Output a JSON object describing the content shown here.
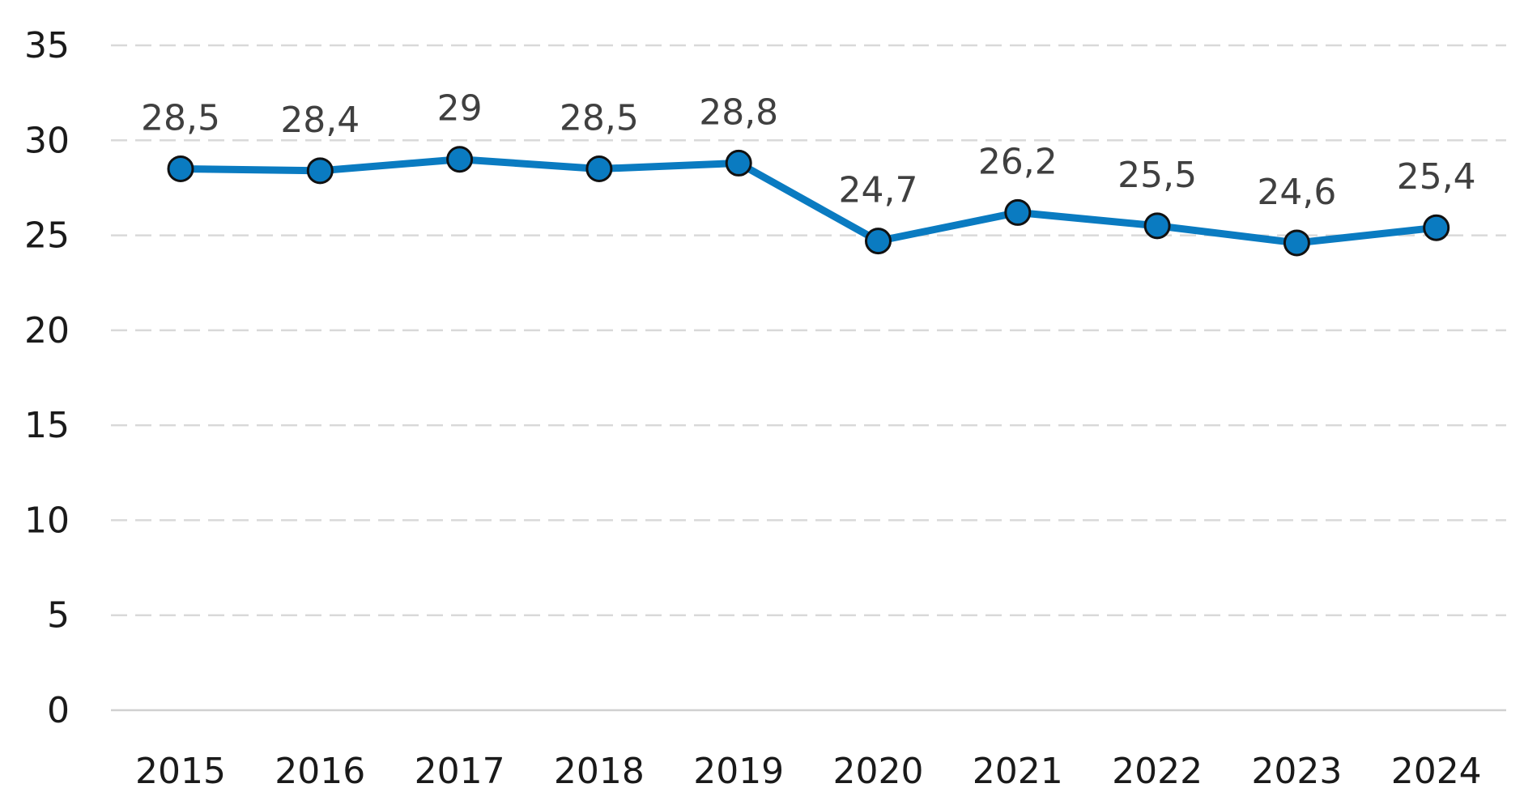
{
  "chart_data": {
    "type": "line",
    "categories": [
      "2015",
      "2016",
      "2017",
      "2018",
      "2019",
      "2020",
      "2021",
      "2022",
      "2023",
      "2024"
    ],
    "series": [
      {
        "values": [
          28.5,
          28.4,
          29,
          28.5,
          28.8,
          24.7,
          26.2,
          25.5,
          24.6,
          25.4
        ],
        "labels": [
          "28,5",
          "28,4",
          "29",
          "28,5",
          "28,8",
          "24,7",
          "26,2",
          "25,5",
          "24,6",
          "25,4"
        ]
      }
    ],
    "ylim": [
      0,
      35
    ],
    "yticks": [
      "0",
      "5",
      "10",
      "15",
      "20",
      "25",
      "30",
      "35"
    ],
    "grid": "horizontal-dashed",
    "colors": {
      "line": "#0a7bc1",
      "marker_fill": "#0a7bc1",
      "marker_stroke": "#111111",
      "grid": "#d9d9d9",
      "baseline": "#d0d0d0"
    }
  }
}
